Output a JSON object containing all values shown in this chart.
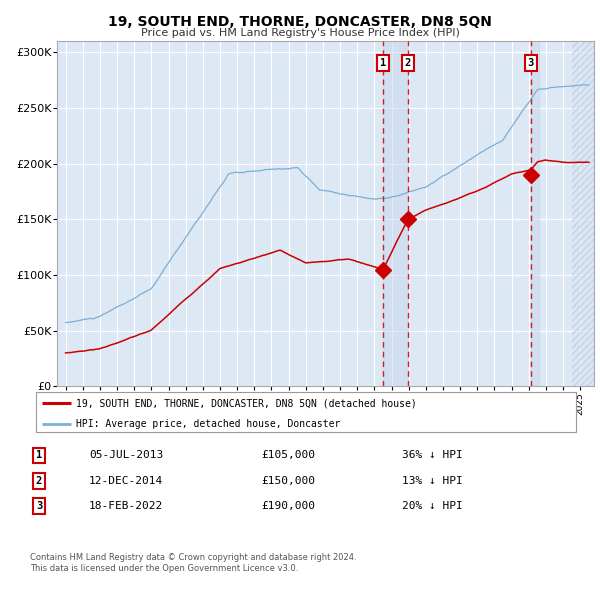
{
  "title": "19, SOUTH END, THORNE, DONCASTER, DN8 5QN",
  "subtitle": "Price paid vs. HM Land Registry's House Price Index (HPI)",
  "background_color": "#ffffff",
  "plot_bg_color": "#dde8f5",
  "grid_color": "#ffffff",
  "sale1": {
    "date": 2013.508,
    "price": 105000,
    "label": "1",
    "date_str": "05-JUL-2013",
    "pct": "36%",
    "dir": "↓"
  },
  "sale2": {
    "date": 2014.956,
    "price": 150000,
    "label": "2",
    "date_str": "12-DEC-2014",
    "pct": "13%",
    "dir": "↓"
  },
  "sale3": {
    "date": 2022.121,
    "price": 190000,
    "label": "3",
    "date_str": "18-FEB-2022",
    "pct": "20%",
    "dir": "↓"
  },
  "legend_line1": "19, SOUTH END, THORNE, DONCASTER, DN8 5QN (detached house)",
  "legend_line2": "HPI: Average price, detached house, Doncaster",
  "footer1": "Contains HM Land Registry data © Crown copyright and database right 2024.",
  "footer2": "This data is licensed under the Open Government Licence v3.0.",
  "red_color": "#cc0000",
  "blue_color": "#7bafd4",
  "shade_color": "#c8d8ee",
  "hatch_color": "#b8cce0",
  "xlim_left": 1994.5,
  "xlim_right": 2025.8,
  "ylim_top": 310000,
  "yticks": [
    0,
    50000,
    100000,
    150000,
    200000,
    250000,
    300000
  ],
  "ylabels": [
    "£0",
    "£50K",
    "£100K",
    "£150K",
    "£200K",
    "£250K",
    "£300K"
  ]
}
